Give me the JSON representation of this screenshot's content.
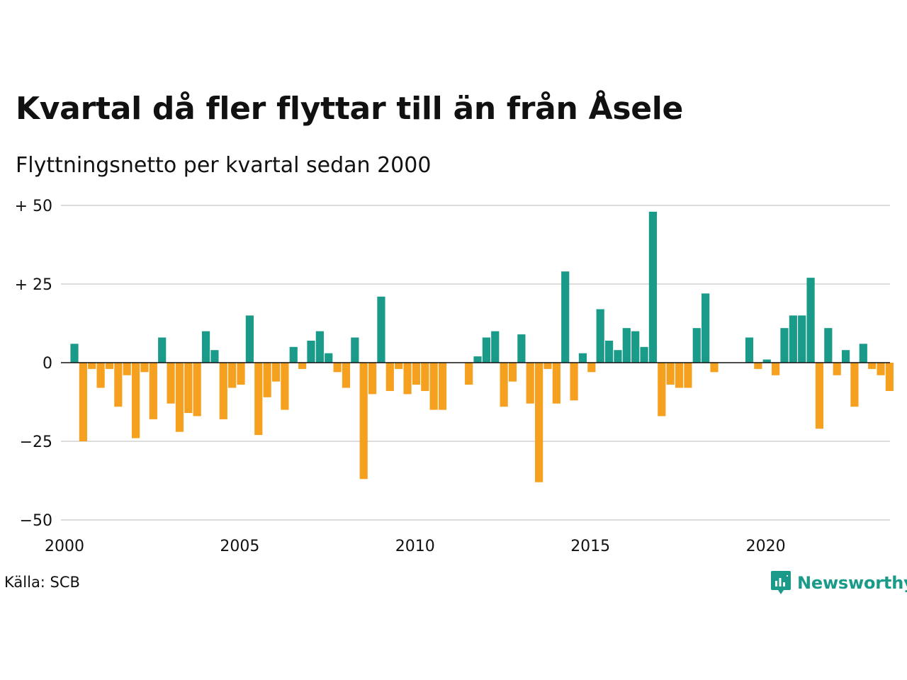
{
  "title": "Kvartal då fler flyttar till än från Åsele",
  "subtitle": "Flyttningsnetto per kvartal sedan 2000",
  "source": "Källa: SCB",
  "logo": {
    "text": "Newsworthy",
    "icon": "newsworthy-logo-icon"
  },
  "colors": {
    "positive": "#1a9a88",
    "negative": "#f5a01e",
    "grid": "#dddddd",
    "zero": "#111111"
  },
  "chart_data": {
    "type": "bar",
    "title": "",
    "xlabel": "",
    "ylabel": "",
    "ylim": [
      -50,
      50
    ],
    "y_ticks": [
      {
        "value": 50,
        "label": "+ 50"
      },
      {
        "value": 25,
        "label": "+ 25"
      },
      {
        "value": 0,
        "label": "0"
      },
      {
        "value": -25,
        "label": "−25"
      },
      {
        "value": -50,
        "label": "−50"
      }
    ],
    "x_ticks": [
      "2000",
      "2005",
      "2010",
      "2015",
      "2020"
    ],
    "x_tick_years": [
      2000,
      2005,
      2010,
      2015,
      2020
    ],
    "grid": true,
    "start": "2000 Q1",
    "values": [
      6,
      -25,
      -2,
      -8,
      -2,
      -14,
      -4,
      -24,
      -3,
      -18,
      8,
      -13,
      -22,
      -16,
      -17,
      10,
      4,
      -18,
      -8,
      -7,
      15,
      -23,
      -11,
      -6,
      -15,
      5,
      -2,
      7,
      10,
      3,
      -3,
      -8,
      8,
      -37,
      -10,
      21,
      -9,
      -2,
      -10,
      -7,
      -9,
      -15,
      -15,
      0,
      0,
      -7,
      2,
      8,
      10,
      -14,
      -6,
      9,
      -13,
      -38,
      -2,
      -13,
      29,
      -12,
      3,
      -3,
      17,
      7,
      4,
      11,
      10,
      5,
      48,
      -17,
      -7,
      -8,
      -8,
      11,
      22,
      -3,
      0,
      0,
      0,
      8,
      -2,
      1,
      -4,
      11,
      15,
      15,
      27,
      -21,
      11,
      -4,
      4,
      -14,
      6,
      -2,
      -4,
      -9
    ]
  }
}
